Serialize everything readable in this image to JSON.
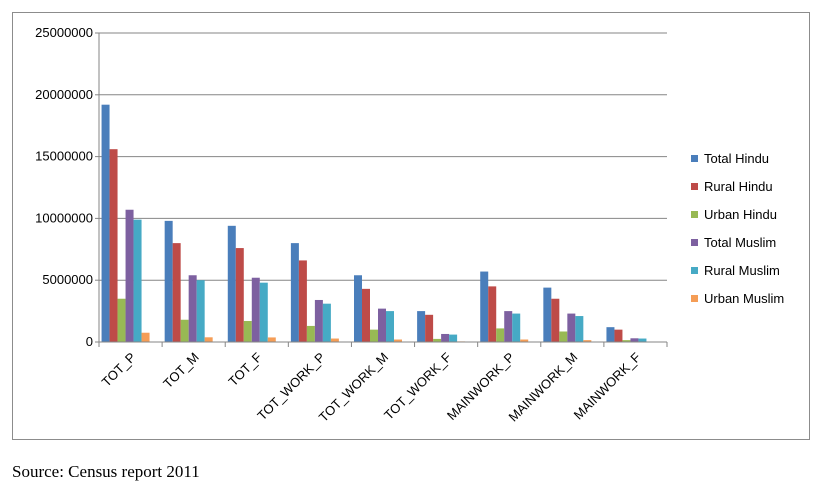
{
  "chart_data": {
    "type": "bar",
    "categories": [
      "TOT_P",
      "TOT_M",
      "TOT_F",
      "TOT_WORK_P",
      "TOT_WORK_M",
      "TOT_WORK_F",
      "MAINWORK_P",
      "MAINWORK_M",
      "MAINWORK_F"
    ],
    "series": [
      {
        "name": "Total Hindu",
        "color": "#4a7ebb",
        "values": [
          19200000,
          9800000,
          9400000,
          8000000,
          5400000,
          2500000,
          5700000,
          4400000,
          1200000
        ]
      },
      {
        "name": "Rural Hindu",
        "color": "#be4b48",
        "values": [
          15600000,
          8000000,
          7600000,
          6600000,
          4300000,
          2200000,
          4500000,
          3500000,
          1000000
        ]
      },
      {
        "name": "Urban Hindu",
        "color": "#98b954",
        "values": [
          3500000,
          1800000,
          1700000,
          1300000,
          1000000,
          250000,
          1100000,
          850000,
          150000
        ]
      },
      {
        "name": "Total Muslim",
        "color": "#7d60a0",
        "values": [
          10700000,
          5400000,
          5200000,
          3400000,
          2700000,
          650000,
          2500000,
          2300000,
          300000
        ]
      },
      {
        "name": "Rural Muslim",
        "color": "#46aac5",
        "values": [
          9900000,
          5000000,
          4800000,
          3100000,
          2500000,
          600000,
          2300000,
          2100000,
          280000
        ]
      },
      {
        "name": "Urban Muslim",
        "color": "#f59d56",
        "values": [
          750000,
          380000,
          370000,
          280000,
          200000,
          50000,
          200000,
          150000,
          30000
        ]
      }
    ],
    "yticks": [
      "0",
      "5000000",
      "10000000",
      "15000000",
      "20000000",
      "25000000"
    ],
    "ylim": [
      0,
      25000000
    ],
    "grid": true,
    "legend_position": "right",
    "title": "",
    "xlabel": "",
    "ylabel": ""
  },
  "source": "Source: Census report 2011"
}
